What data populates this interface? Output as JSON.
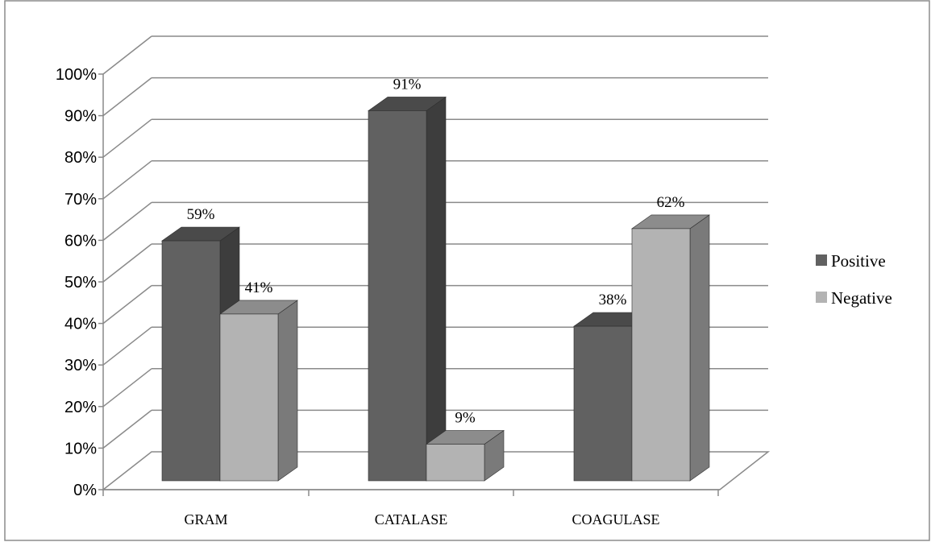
{
  "chart_data": {
    "type": "bar",
    "categories": [
      "GRAM",
      "CATALASE",
      "COAGULASE"
    ],
    "series": [
      {
        "name": "Positive",
        "values": [
          59,
          91,
          38
        ],
        "labels": [
          "59%",
          "91%",
          "38%"
        ]
      },
      {
        "name": "Negative",
        "values": [
          41,
          9,
          62
        ],
        "labels": [
          "41%",
          "9%",
          "62%"
        ]
      }
    ],
    "y_ticks": [
      "0%",
      "10%",
      "20%",
      "30%",
      "40%",
      "50%",
      "60%",
      "70%",
      "80%",
      "90%",
      "100%"
    ],
    "ylim": [
      0,
      100
    ],
    "grid": true,
    "legend_position": "right",
    "style_3d": true
  },
  "colors": {
    "positive_front": "#616161",
    "positive_side": "#3d3d3d",
    "positive_top": "#4a4a4a",
    "negative_front": "#b3b3b3",
    "negative_side": "#7a7a7a",
    "negative_top": "#8c8c8c",
    "grid": "#8a8a8a",
    "axis": "#8a8a8a",
    "border": "#8c8c8c"
  }
}
